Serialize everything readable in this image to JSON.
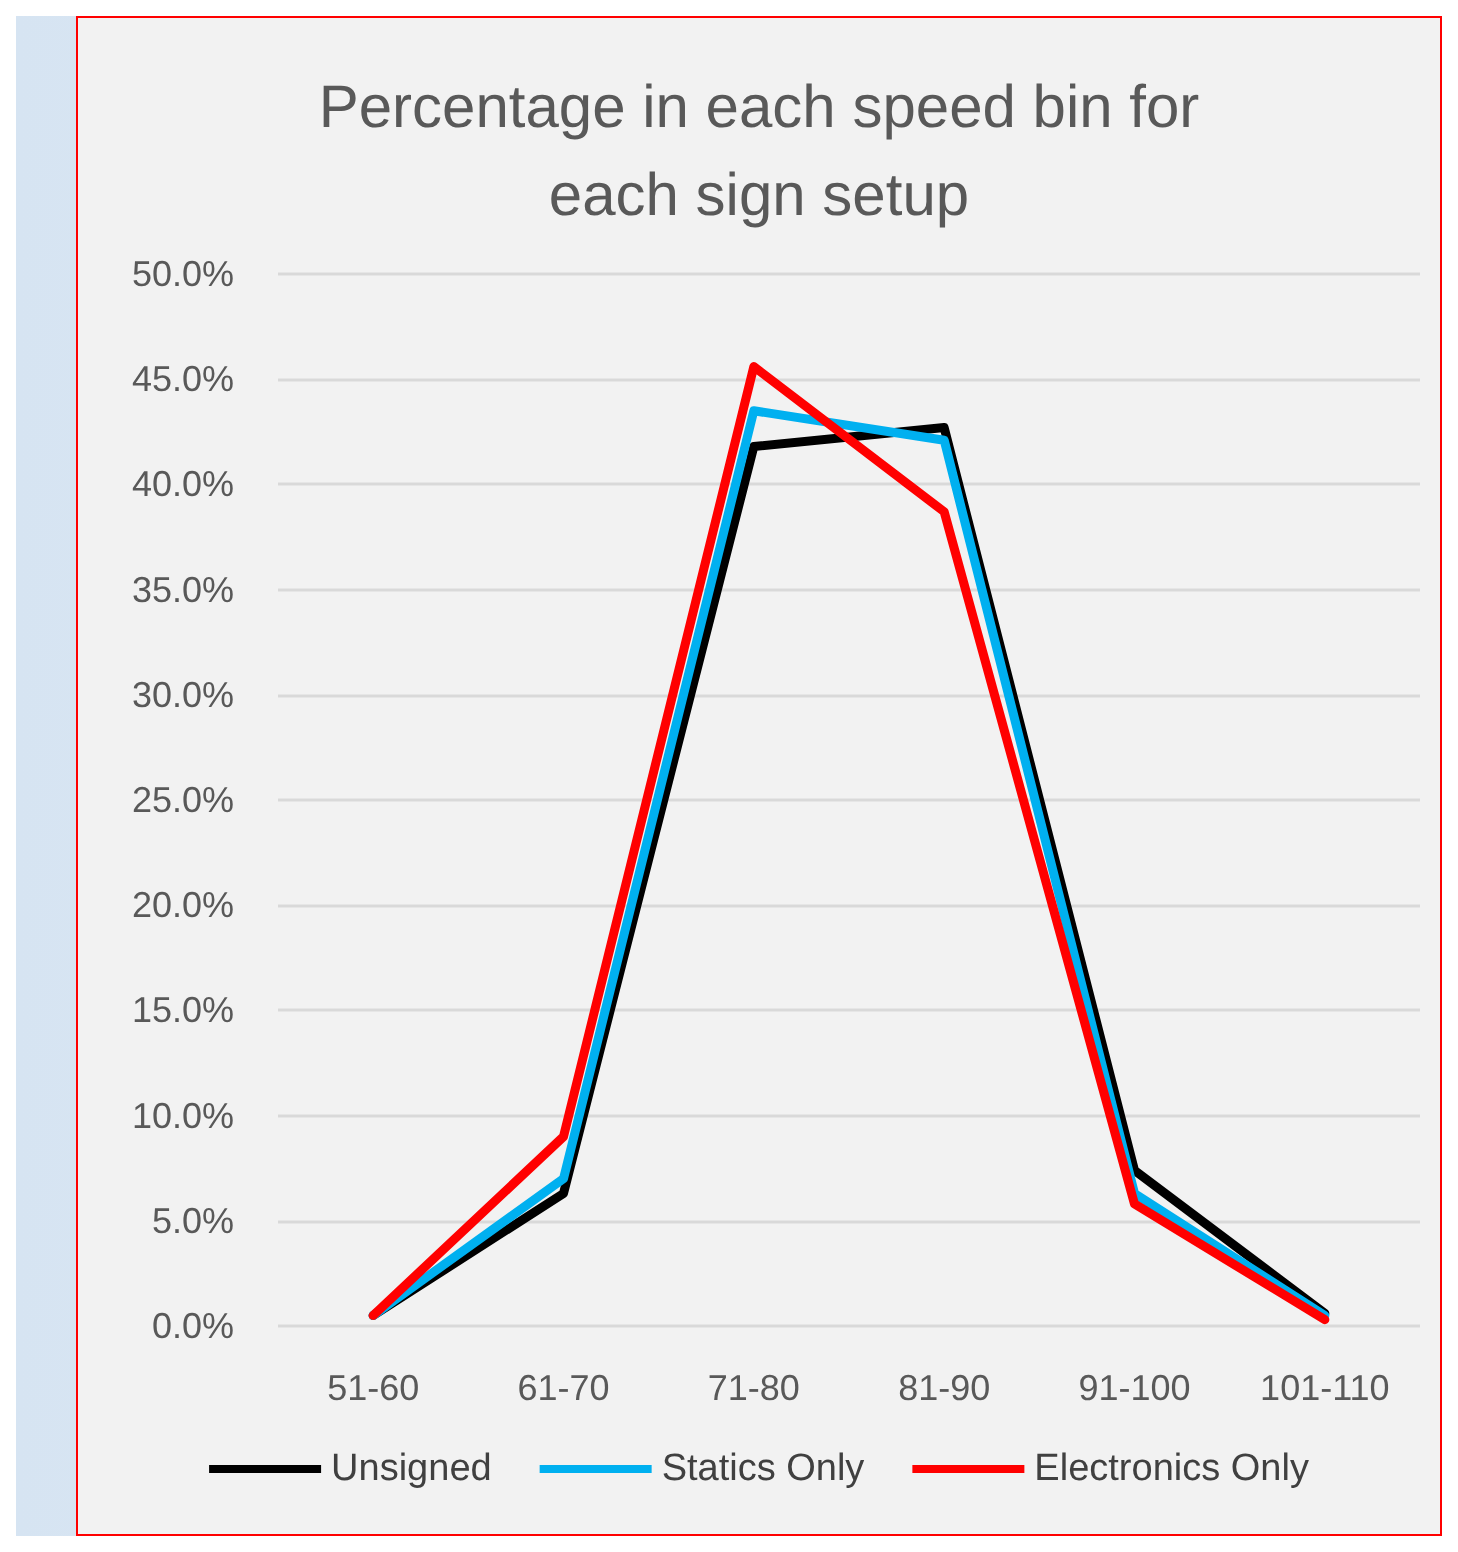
{
  "chart_data": {
    "type": "line",
    "title": "Percentage in each speed bin for\neach sign setup",
    "categories": [
      "51-60",
      "61-70",
      "71-80",
      "81-90",
      "91-100",
      "101-110"
    ],
    "series": [
      {
        "name": "Unsigned",
        "color": "#000000",
        "values": [
          0.5,
          6.3,
          41.8,
          42.7,
          7.4,
          0.6
        ]
      },
      {
        "name": "Statics Only",
        "color": "#00b0f0",
        "values": [
          0.5,
          7.0,
          43.5,
          42.1,
          6.3,
          0.5
        ]
      },
      {
        "name": "Electronics Only",
        "color": "#ff0000",
        "values": [
          0.5,
          9.0,
          45.6,
          38.7,
          5.8,
          0.3
        ]
      }
    ],
    "ylim": [
      0,
      50
    ],
    "yticks": [
      {
        "value": 0,
        "label": "0.0%"
      },
      {
        "value": 5,
        "label": "5.0%"
      },
      {
        "value": 10,
        "label": "10.0%"
      },
      {
        "value": 15,
        "label": "15.0%"
      },
      {
        "value": 20,
        "label": "20.0%"
      },
      {
        "value": 25,
        "label": "25.0%"
      },
      {
        "value": 30,
        "label": "30.0%"
      },
      {
        "value": 35,
        "label": "35.0%"
      },
      {
        "value": 40,
        "label": "40.0%"
      },
      {
        "value": 45,
        "label": "45.0%"
      },
      {
        "value": 50,
        "label": "50.0%"
      }
    ],
    "grid": "y",
    "legend": "bottom",
    "marker": "none",
    "line_style": "solid"
  }
}
